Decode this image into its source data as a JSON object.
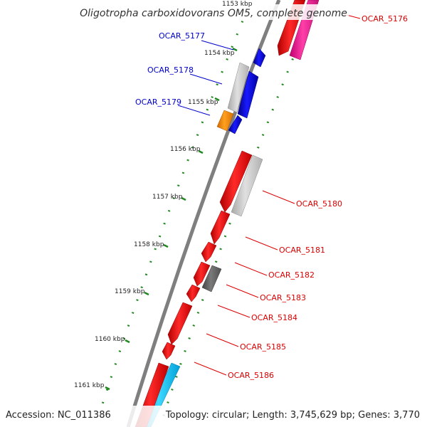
{
  "title": "Oligotropha carboxidovorans OM5, complete genome",
  "accession": "Accession: NC_011386",
  "topology": "Topology: circular; Length: 3,745,629 bp; Genes: 3,770",
  "ticks": [
    "1153 kbp",
    "1154 kbp",
    "1155 kbp",
    "1156 kbp",
    "1157 kbp",
    "1158 kbp",
    "1159 kbp",
    "1160 kbp",
    "1161 kbp"
  ],
  "genes_left": [
    "OCAR_5177",
    "OCAR_5178",
    "OCAR_5179"
  ],
  "genes_right": [
    "OCAR_5176",
    "OCAR_5180",
    "OCAR_5181",
    "OCAR_5182",
    "OCAR_5183",
    "OCAR_5184",
    "OCAR_5185",
    "OCAR_5186"
  ],
  "colors": {
    "forward_label": "#0000cc",
    "reverse_label": "#dd0000",
    "backbone": "#888888",
    "tick_marks": "#228822",
    "gene_red": "#ff0000",
    "gene_blue": "#0000ee",
    "gene_gray": "#c8c8c8",
    "gene_dark_gray": "#666666",
    "gene_orange": "#ff8c00",
    "gene_magenta": "#ff1493",
    "gene_cyan": "#1ec8ff"
  }
}
